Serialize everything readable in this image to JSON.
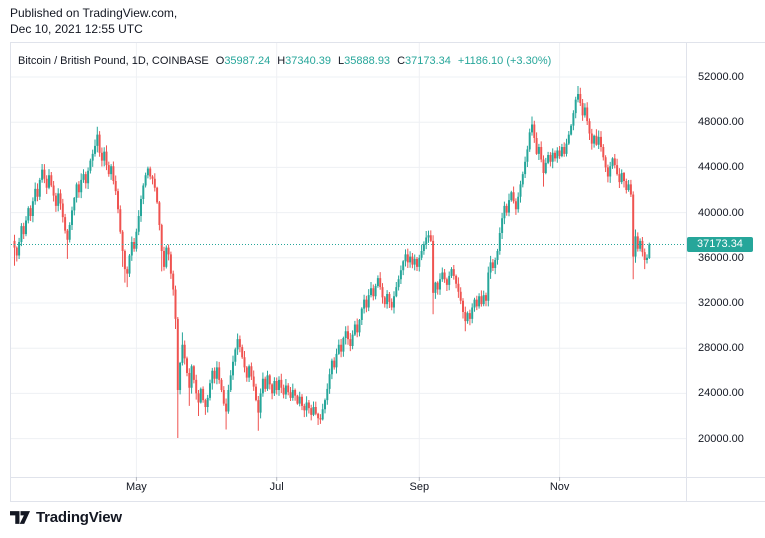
{
  "published": {
    "line1": "Published on TradingView.com,",
    "line2": "Dec 10, 2021 12:55 UTC"
  },
  "header": {
    "symbol": "Bitcoin / British Pound, 1D, COINBASE",
    "ohlc": [
      {
        "label": "O",
        "value": "35987.24"
      },
      {
        "label": "H",
        "value": "37340.39"
      },
      {
        "label": "L",
        "value": "35888.93"
      },
      {
        "label": "C",
        "value": "37173.34"
      }
    ],
    "change": "+1186.10 (+3.30%)"
  },
  "footer": {
    "brand": "TradingView"
  },
  "colors": {
    "up": "#26a69a",
    "down": "#ef5350",
    "text": "#131722",
    "grid": "#eef0f4",
    "frame": "#e0e3eb",
    "tick": "#b2b5be",
    "label_bg": "#26a69a",
    "label_text": "#ffffff"
  },
  "chart_data": {
    "type": "candlestick",
    "title": "Bitcoin / British Pound",
    "interval": "1D",
    "exchange": "COINBASE",
    "legend_last_candle": {
      "open": 35987.24,
      "high": 37340.39,
      "low": 35888.93,
      "close": 37173.34
    },
    "change_abs": 1186.1,
    "change_pct": 3.3,
    "last_price_label": "37173.34",
    "price_line_k": 37.17334,
    "grid": true,
    "y_axis": {
      "unit": "GBP",
      "ticks_k": [
        52,
        48,
        44,
        40,
        36,
        32,
        28,
        24,
        20
      ],
      "tick_labels": [
        "52000.00",
        "48000.00",
        "44000.00",
        "40000.00",
        "36000.00",
        "32000.00",
        "28000.00",
        "24000.00",
        "20000.00"
      ]
    },
    "x_axis": {
      "months": [
        {
          "label": "May",
          "day": 53
        },
        {
          "label": "Jul",
          "day": 114
        },
        {
          "label": "Sep",
          "day": 176
        },
        {
          "label": "Nov",
          "day": 237
        }
      ]
    },
    "closes_k": [
      36.9,
      36.2,
      37.4,
      38.8,
      38.1,
      39.3,
      40.4,
      39.7,
      41.0,
      42.1,
      41.4,
      42.9,
      43.8,
      43.0,
      42.2,
      43.3,
      42.4,
      41.5,
      40.6,
      41.7,
      40.8,
      39.6,
      38.4,
      37.6,
      38.9,
      40.2,
      41.3,
      42.5,
      41.8,
      42.9,
      43.4,
      42.6,
      43.7,
      44.6,
      45.2,
      45.9,
      46.9,
      45.3,
      44.6,
      45.4,
      44.2,
      43.4,
      44.1,
      42.8,
      41.9,
      40.3,
      38.3,
      36.6,
      35.0,
      34.6,
      36.2,
      37.4,
      36.8,
      38.3,
      39.7,
      41.2,
      42.4,
      43.3,
      43.9,
      43.2,
      43.0,
      42.2,
      40.9,
      38.9,
      36.6,
      35.2,
      36.9,
      36.3,
      34.6,
      33.2,
      30.6,
      24.3,
      26.7,
      28.3,
      27.1,
      25.8,
      24.5,
      26.4,
      25.2,
      24.0,
      23.2,
      24.4,
      23.4,
      22.8,
      23.6,
      24.9,
      26.0,
      25.3,
      26.3,
      25.2,
      24.3,
      23.1,
      22.4,
      24.3,
      25.6,
      26.8,
      27.9,
      28.8,
      28.1,
      27.2,
      26.3,
      25.4,
      26.4,
      25.5,
      24.6,
      23.4,
      22.3,
      24.0,
      25.3,
      24.4,
      25.6,
      24.8,
      24.0,
      25.1,
      24.3,
      25.2,
      24.5,
      23.9,
      24.7,
      24.1,
      23.6,
      24.3,
      23.8,
      23.1,
      23.7,
      22.9,
      22.5,
      23.2,
      22.7,
      22.1,
      22.8,
      22.2,
      21.8,
      21.7,
      22.6,
      23.4,
      24.4,
      25.7,
      26.9,
      26.3,
      27.5,
      28.3,
      27.7,
      28.9,
      29.5,
      28.8,
      28.2,
      29.2,
      30.1,
      29.4,
      30.5,
      31.5,
      32.3,
      31.6,
      32.7,
      33.3,
      32.6,
      33.5,
      34.2,
      33.4,
      32.5,
      31.9,
      32.8,
      32.1,
      31.6,
      32.6,
      33.4,
      34.1,
      34.9,
      35.7,
      36.3,
      35.6,
      36.1,
      35.4,
      35.9,
      35.2,
      36.0,
      36.6,
      37.2,
      37.8,
      38.0,
      37.5,
      32.9,
      33.8,
      33.2,
      34.1,
      34.7,
      34.1,
      33.6,
      34.4,
      35.0,
      34.4,
      33.7,
      33.0,
      32.2,
      31.2,
      30.4,
      31.1,
      30.6,
      31.6,
      32.3,
      31.7,
      32.6,
      31.9,
      32.7,
      32.2,
      34.7,
      35.6,
      35.1,
      35.8,
      36.6,
      38.2,
      39.5,
      40.6,
      40.0,
      41.1,
      41.8,
      41.0,
      40.3,
      41.4,
      42.5,
      43.4,
      44.5,
      45.6,
      47.1,
      47.8,
      46.6,
      45.2,
      45.8,
      44.7,
      43.5,
      44.4,
      45.1,
      44.5,
      45.3,
      44.8,
      45.5,
      45.0,
      45.8,
      45.2,
      46.1,
      46.9,
      47.7,
      48.8,
      50.0,
      50.5,
      49.7,
      48.6,
      49.3,
      48.1,
      47.0,
      46.1,
      46.8,
      46.0,
      46.7,
      45.8,
      44.9,
      44.0,
      43.2,
      44.1,
      44.8,
      44.2,
      43.4,
      42.7,
      43.5,
      42.8,
      42.0,
      42.5,
      41.6,
      36.1,
      37.9,
      36.8,
      37.5,
      36.5,
      35.8,
      36.0,
      37.2
    ],
    "wick_extremes_k": {
      "0": {
        "l": 35.3
      },
      "12": {
        "h": 44.3
      },
      "23": {
        "l": 35.9
      },
      "36": {
        "h": 47.6
      },
      "47": {
        "l": 35.2
      },
      "48": {
        "l": 33.8
      },
      "49": {
        "l": 33.4
      },
      "64": {
        "l": 34.8
      },
      "70": {
        "l": 29.7
      },
      "71": {
        "l": 20.05
      },
      "73": {
        "h": 29.4
      },
      "76": {
        "l": 22.9
      },
      "80": {
        "l": 22.0
      },
      "83": {
        "l": 22.1
      },
      "92": {
        "l": 20.8
      },
      "97": {
        "h": 29.3
      },
      "106": {
        "l": 20.7
      },
      "126": {
        "l": 21.9
      },
      "132": {
        "l": 21.2
      },
      "133": {
        "l": 21.3
      },
      "180": {
        "h": 38.4
      },
      "182": {
        "l": 31.0
      },
      "196": {
        "l": 29.5
      },
      "218": {
        "l": 39.8
      },
      "225": {
        "h": 48.5
      },
      "230": {
        "l": 42.3
      },
      "245": {
        "h": 51.2
      },
      "269": {
        "l": 34.1
      },
      "270": {
        "h": 38.5
      },
      "274": {
        "l": 35.0
      }
    }
  }
}
